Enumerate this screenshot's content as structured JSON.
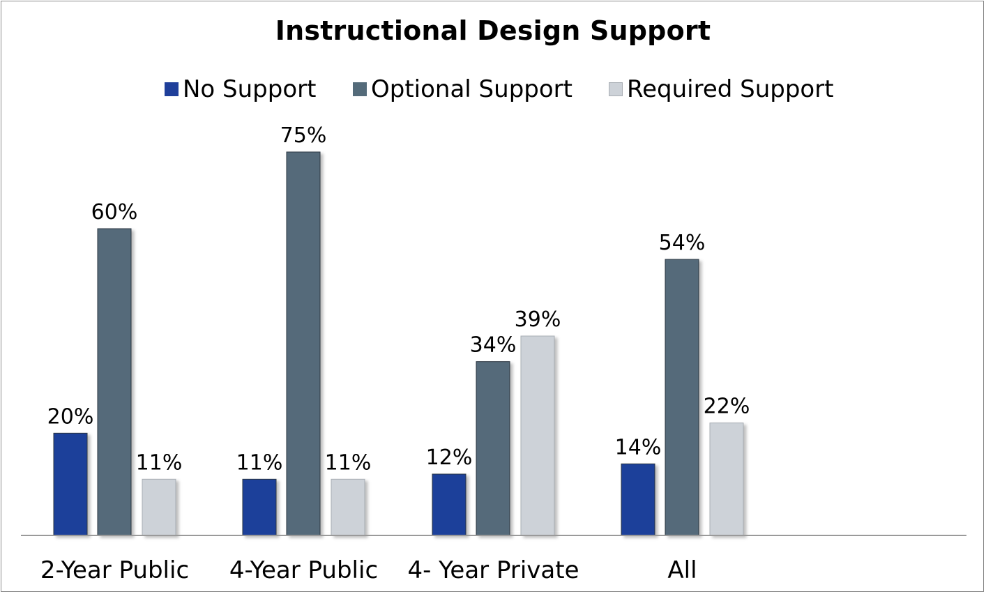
{
  "chart_data": {
    "type": "bar",
    "title": "Instructional Design Support",
    "categories": [
      "2-Year Public",
      "4-Year Public",
      "4- Year Private",
      "All"
    ],
    "series": [
      {
        "name": "No Support",
        "color": "#1f3f9a",
        "values": [
          20,
          11,
          12,
          14
        ],
        "labels": [
          "20%",
          "11%",
          "12%",
          "14%"
        ]
      },
      {
        "name": "Optional Support",
        "color": "#546b7a",
        "values": [
          60,
          75,
          34,
          54
        ],
        "labels": [
          "60%",
          "75%",
          "34%",
          "54%"
        ]
      },
      {
        "name": "Required Support",
        "color": "#cdd2d8",
        "values": [
          11,
          11,
          39,
          22
        ],
        "labels": [
          "11%",
          "11%",
          "39%",
          "22%"
        ]
      }
    ],
    "ylim": [
      0,
      75
    ],
    "unit": "%",
    "legend_position": "top",
    "grid": false
  }
}
